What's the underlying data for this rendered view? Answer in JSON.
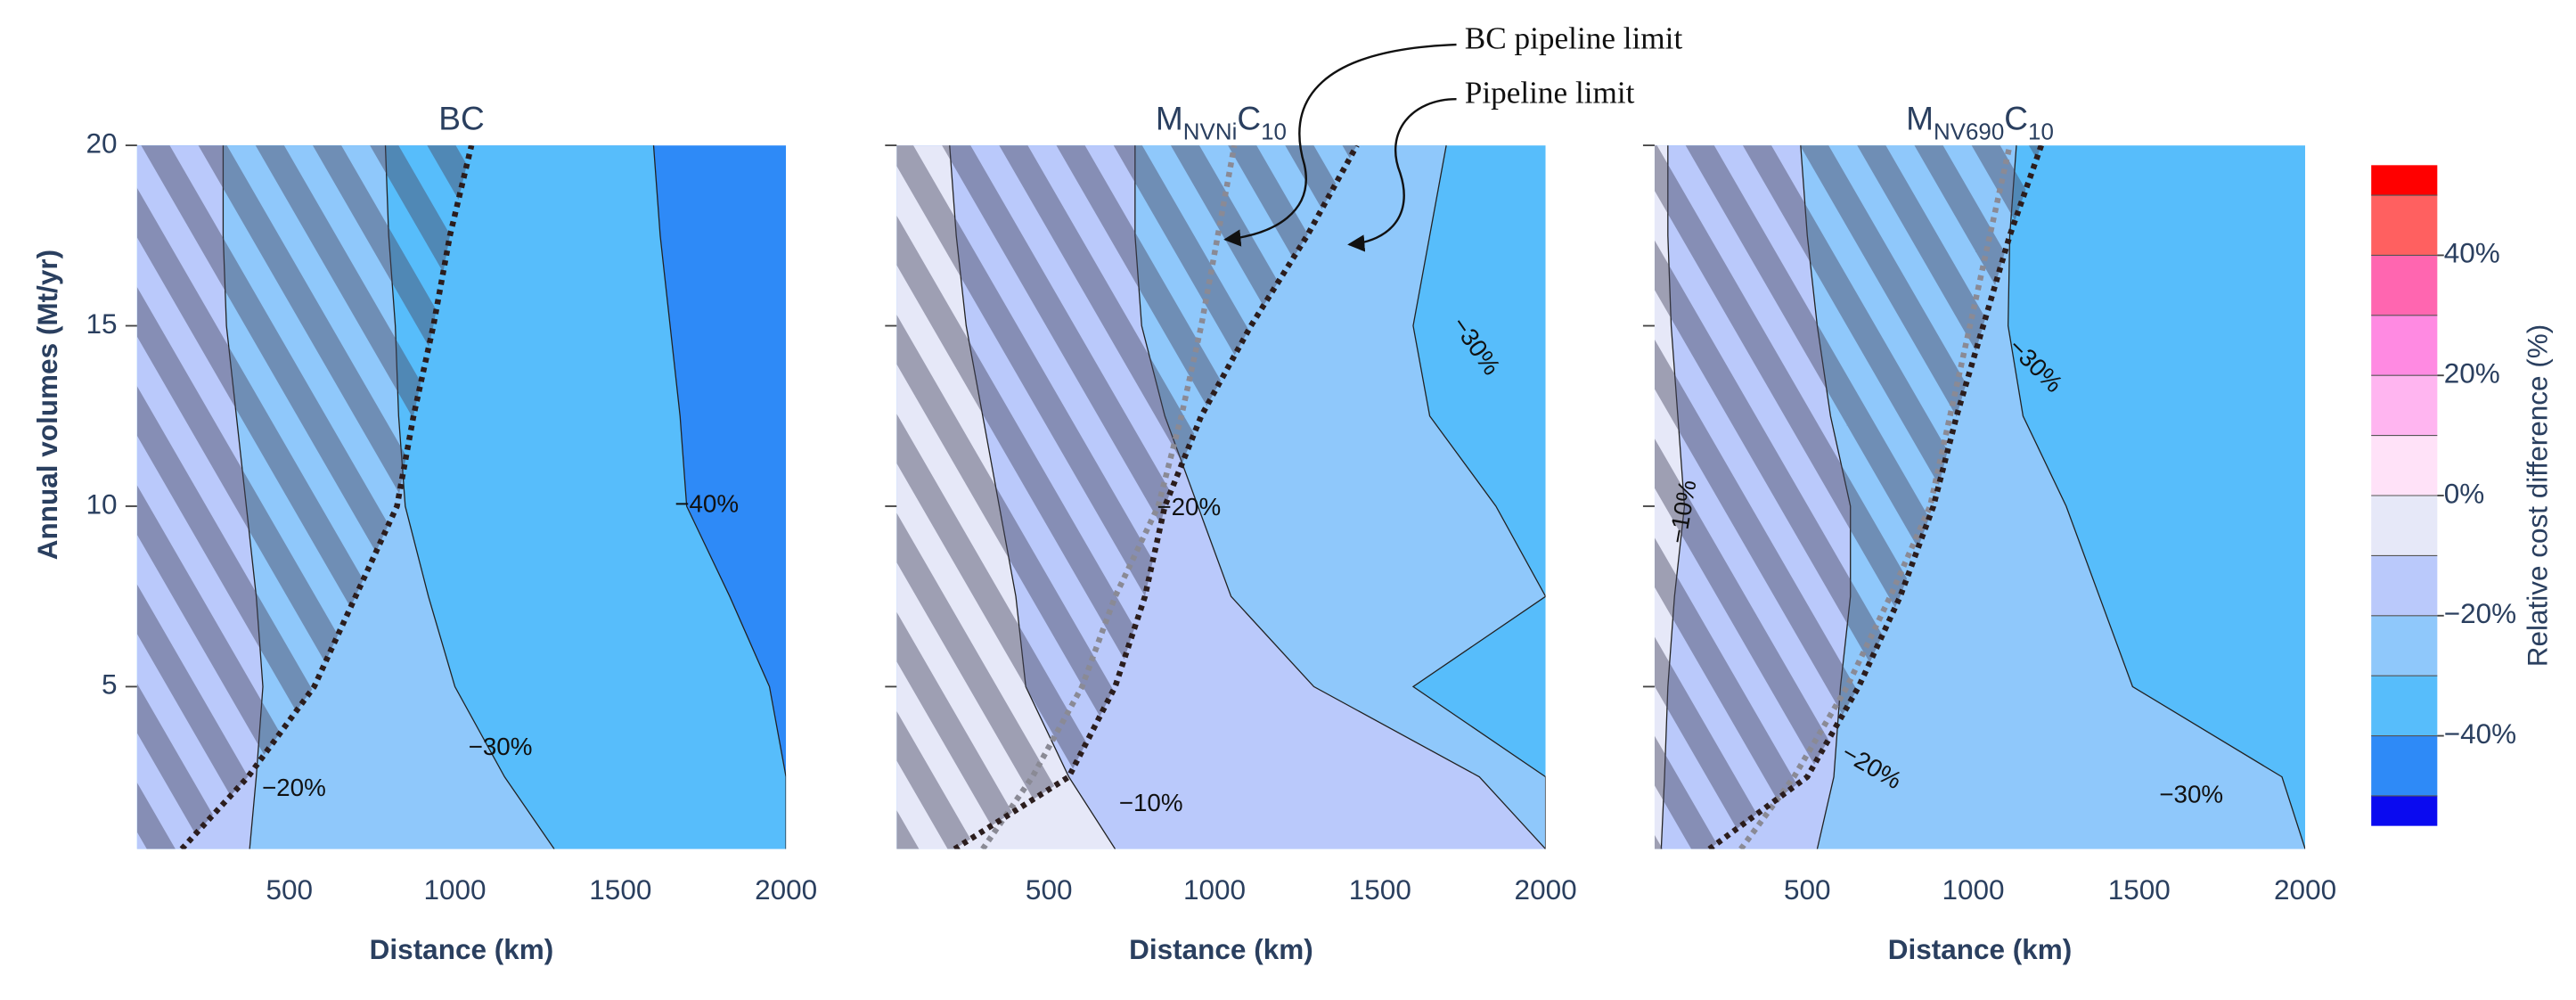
{
  "chart_data": [
    {
      "type": "contour",
      "title": [
        {
          "text": "BC"
        }
      ],
      "x_label": "Distance (km)",
      "y_label": "Annual volumes (Mt/yr)",
      "xlim": [
        40,
        2000
      ],
      "ylim": [
        0.5,
        20
      ],
      "xticks": [
        500,
        1000,
        1500,
        2000
      ],
      "yticks": [
        5,
        10,
        15,
        20
      ],
      "show_ytick_labels": true,
      "volumes": [
        0.5,
        2.5,
        5,
        7.5,
        10,
        12.5,
        15,
        17.5,
        20
      ],
      "bands": [
        {
          "color": "#bac9fb",
          "edge": [
            380,
            400,
            420,
            400,
            370,
            340,
            310,
            300,
            300
          ]
        },
        {
          "color": "#8fc8fb",
          "edge": [
            1300,
            1150,
            1000,
            920,
            850,
            830,
            820,
            800,
            790
          ]
        },
        {
          "color": "#57bdfb",
          "edge": [
            2000,
            2000,
            1950,
            1830,
            1700,
            1680,
            1650,
            1620,
            1600
          ]
        },
        {
          "color": "#2e8af7",
          "edge": [
            2000,
            2000,
            2000,
            2000,
            2000,
            2000,
            2000,
            2000,
            2000
          ]
        }
      ],
      "pipeline_limit": [
        175,
        375,
        575,
        700,
        825,
        875,
        935,
        985,
        1050
      ],
      "contour_labels": [
        "−20%",
        "−30%",
        "−40%"
      ]
    },
    {
      "type": "contour",
      "title": [
        {
          "text": "M"
        },
        {
          "text": "NVNi",
          "sub": true
        },
        {
          "text": "C"
        },
        {
          "text": "10",
          "sub": true
        }
      ],
      "x_label": "Distance (km)",
      "xlim": [
        40,
        2000
      ],
      "ylim": [
        0.5,
        20
      ],
      "xticks": [
        500,
        1000,
        1500,
        2000
      ],
      "yticks": [
        5,
        10,
        15,
        20
      ],
      "show_ytick_labels": false,
      "volumes": [
        0.5,
        2.5,
        5,
        7.5,
        10,
        12.5,
        15,
        17.5,
        20
      ],
      "bands": [
        {
          "color": "#e6e8f8",
          "edge": [
            700,
            560,
            430,
            400,
            350,
            300,
            250,
            220,
            200
          ]
        },
        {
          "color": "#bac9fb",
          "edge": [
            2000,
            1800,
            1300,
            1050,
            950,
            850,
            780,
            760,
            760
          ]
        },
        {
          "color": "#8fc8fb",
          "edge": [
            2000,
            2000,
            1600,
            2000,
            1850,
            1650,
            1600,
            1650,
            1700
          ]
        },
        {
          "color": "#57bdfb",
          "edge": [
            2000,
            2000,
            2000,
            2000,
            2000,
            2000,
            2000,
            2000,
            2000
          ]
        }
      ],
      "pipeline_limit": [
        215,
        560,
        700,
        790,
        850,
        960,
        1110,
        1280,
        1430
      ],
      "bc_pipeline_limit": [
        300,
        450,
        600,
        700,
        830,
        900,
        960,
        1010,
        1060
      ],
      "contour_labels": [
        "−20%",
        "−10%",
        "−30%"
      ],
      "callouts": [
        "BC pipeline limit",
        "Pipeline limit"
      ]
    },
    {
      "type": "contour",
      "title": [
        {
          "text": "M"
        },
        {
          "text": "NV690",
          "sub": true
        },
        {
          "text": "C"
        },
        {
          "text": "10",
          "sub": true
        }
      ],
      "x_label": "Distance (km)",
      "xlim": [
        40,
        2000
      ],
      "ylim": [
        0.5,
        20
      ],
      "xticks": [
        500,
        1000,
        1500,
        2000
      ],
      "yticks": [
        5,
        10,
        15,
        20
      ],
      "show_ytick_labels": false,
      "volumes": [
        0.5,
        2.5,
        5,
        7.5,
        10,
        12.5,
        15,
        17.5,
        20
      ],
      "bands": [
        {
          "color": "#e6e8f8",
          "edge": [
            60,
            70,
            80,
            100,
            130,
            110,
            90,
            80,
            80
          ]
        },
        {
          "color": "#bac9fb",
          "edge": [
            530,
            580,
            600,
            630,
            630,
            570,
            530,
            500,
            480
          ]
        },
        {
          "color": "#8fc8fb",
          "edge": [
            2000,
            1930,
            1480,
            1380,
            1280,
            1150,
            1105,
            1110,
            1130
          ]
        },
        {
          "color": "#57bdfb",
          "edge": [
            2000,
            2000,
            2000,
            2000,
            2000,
            2000,
            2000,
            2000,
            2000
          ]
        }
      ],
      "pipeline_limit": [
        205,
        500,
        655,
        780,
        880,
        950,
        1030,
        1110,
        1205
      ],
      "bc_pipeline_limit": [
        300,
        460,
        620,
        750,
        870,
        930,
        990,
        1050,
        1110
      ],
      "contour_labels": [
        "−10%",
        "−30%",
        "−20%",
        "−30%"
      ]
    }
  ],
  "colorbar": {
    "title": "Relative cost difference (%)",
    "bounds": [
      -55,
      -50,
      -40,
      -30,
      -20,
      -10,
      0,
      10,
      20,
      30,
      40,
      50,
      55
    ],
    "colors": [
      "#0a0af0",
      "#2e8af7",
      "#57bdfb",
      "#8fc8fb",
      "#bac9fb",
      "#e6e8f8",
      "#ffe2f8",
      "#ffb5f0",
      "#ff8ae2",
      "#ff66b0",
      "#ff6060",
      "#ff0000"
    ],
    "ticks": [
      {
        "value": 40,
        "label": "40%"
      },
      {
        "value": 20,
        "label": "20%"
      },
      {
        "value": 0,
        "label": "0%"
      },
      {
        "value": -20,
        "label": "−20%"
      },
      {
        "value": -40,
        "label": "−40%"
      }
    ]
  }
}
